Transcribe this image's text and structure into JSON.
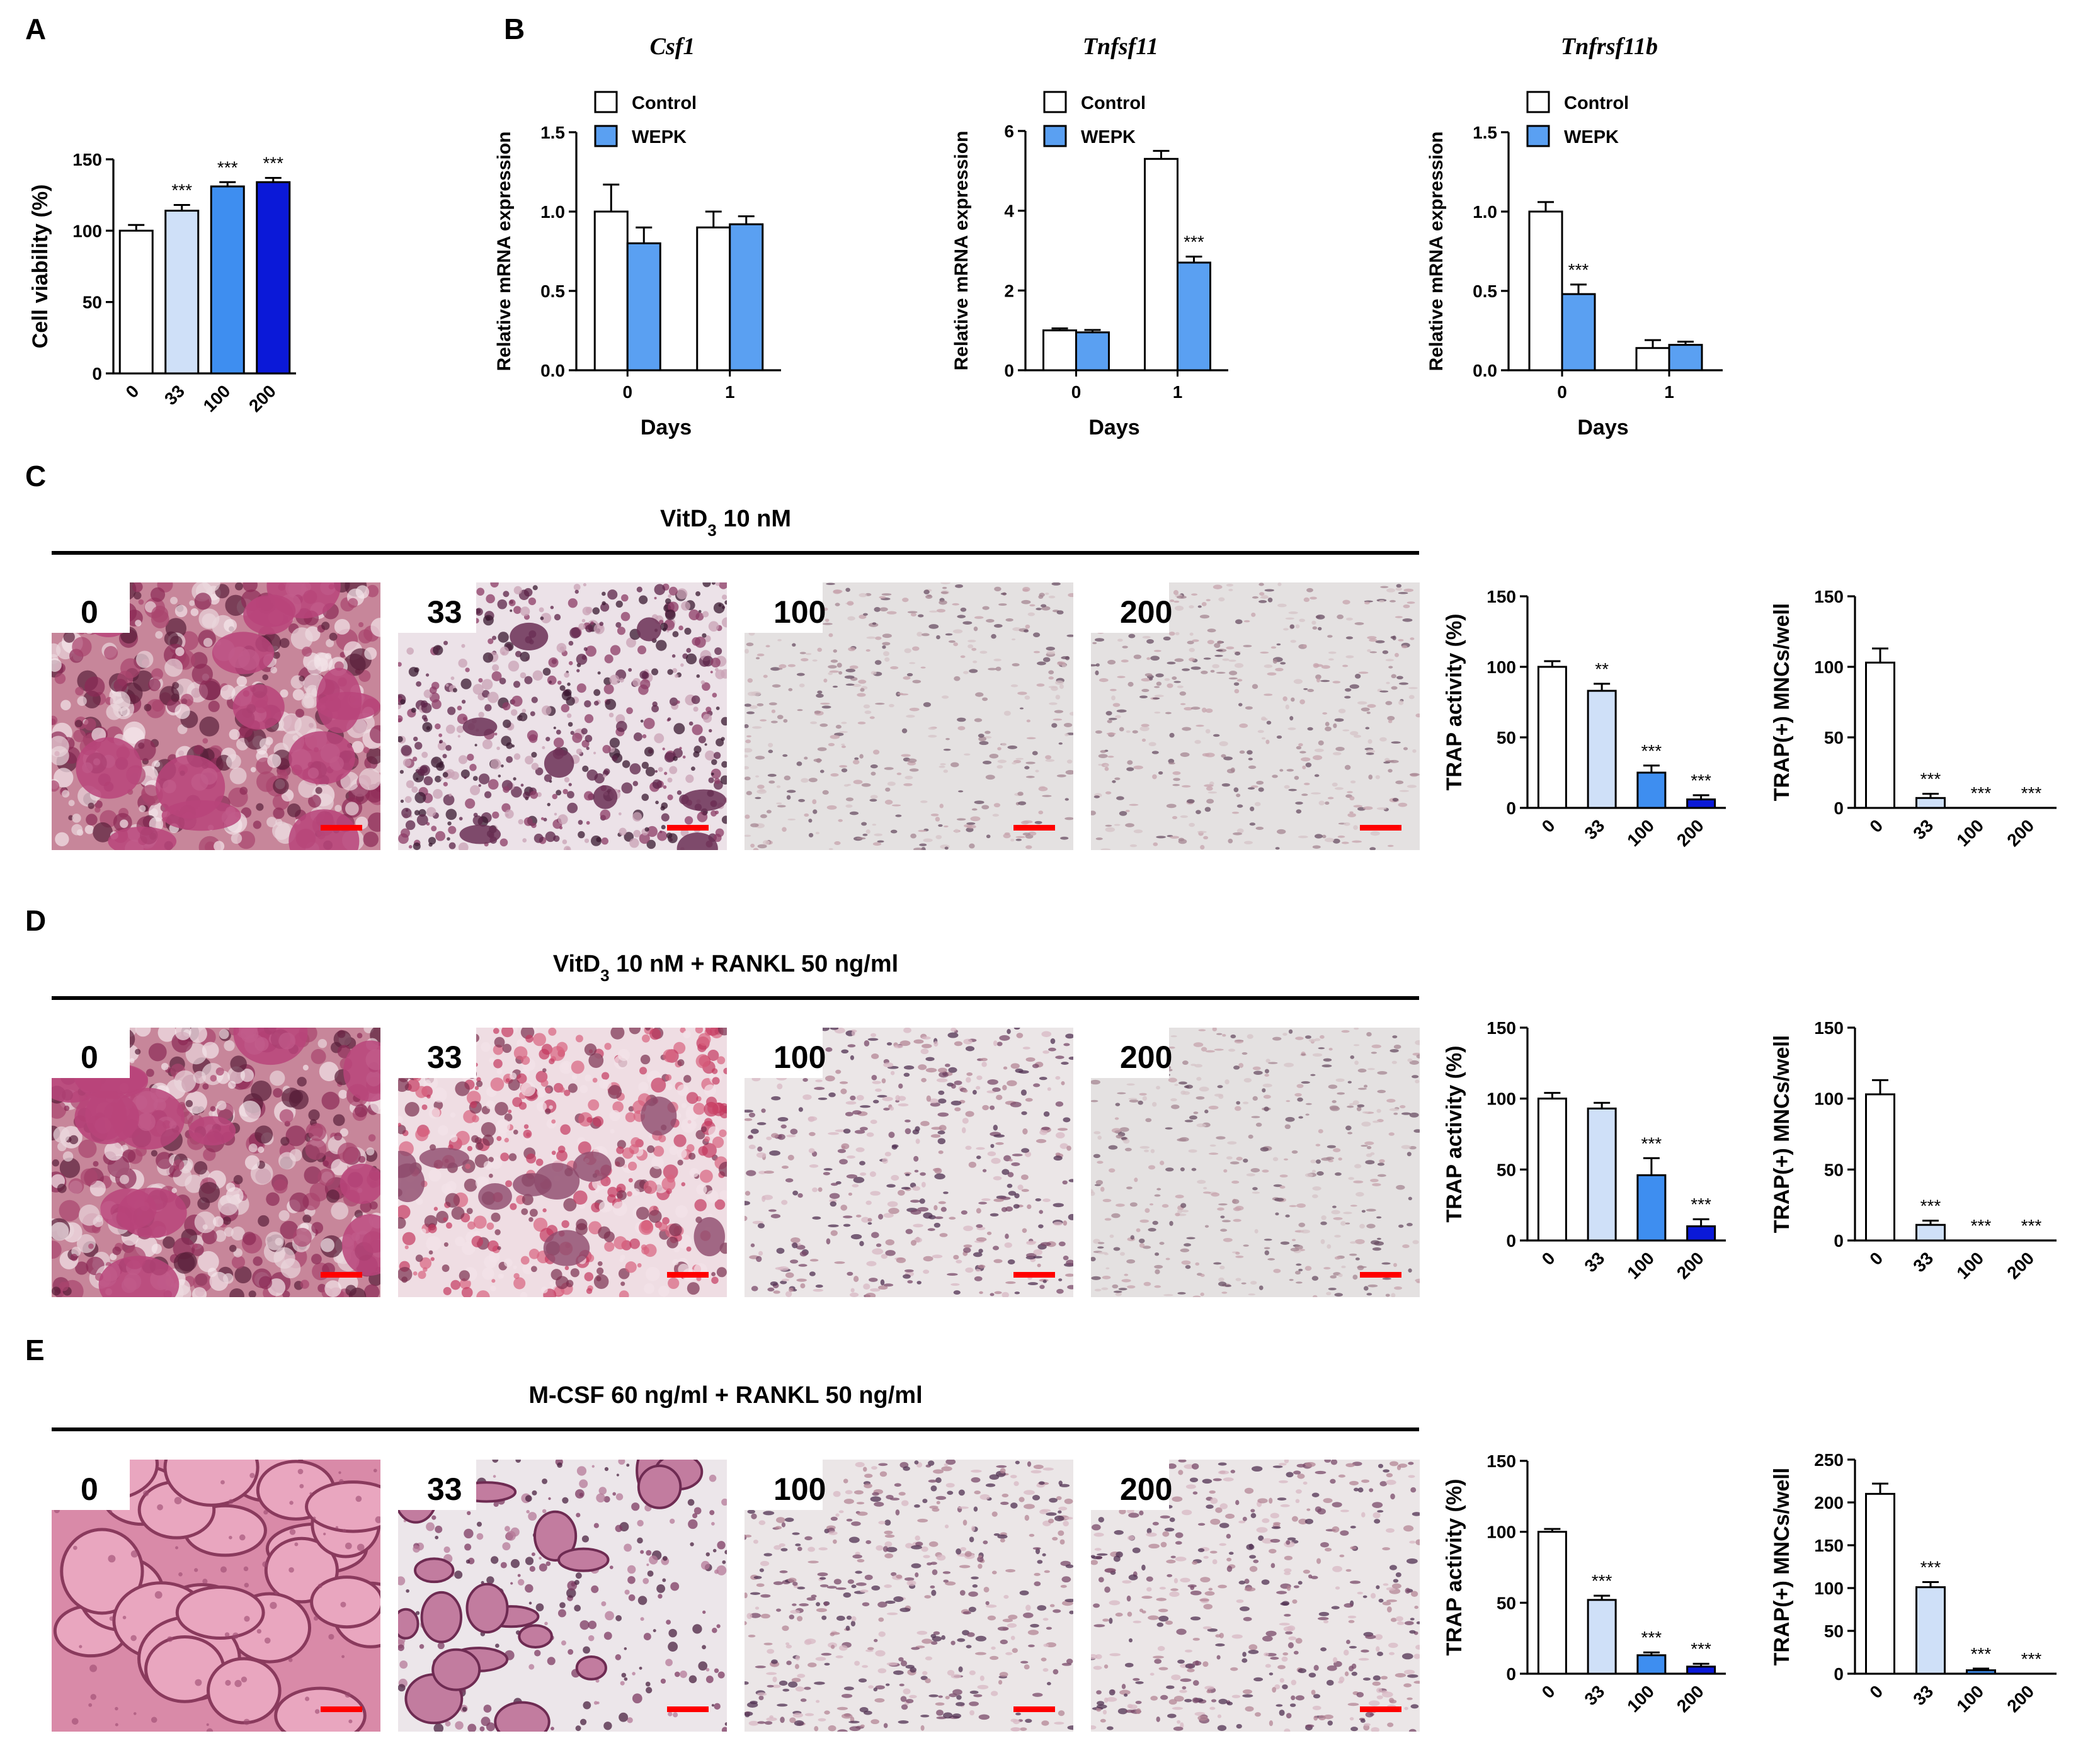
{
  "panel_labels": [
    "A",
    "B",
    "C",
    "D",
    "E"
  ],
  "chart_data": [
    {
      "id": "A",
      "type": "bar",
      "categories": [
        "0",
        "33",
        "100",
        "200"
      ],
      "values": [
        100,
        114,
        131,
        134
      ],
      "errors": [
        4,
        4,
        3,
        3
      ],
      "significance": [
        "",
        "***",
        "***",
        "***"
      ],
      "colors": [
        "#ffffff",
        "#cfe0f8",
        "#3e8ef0",
        "#0b19d8"
      ],
      "ylabel": "Cell viability (%)",
      "ylim": [
        0,
        150
      ],
      "yticks": [
        0,
        50,
        100,
        150
      ]
    },
    {
      "id": "B1",
      "type": "bar",
      "title": "Csf1",
      "categories": [
        "0",
        "1"
      ],
      "xlabel": "Days",
      "ylabel": "Relative mRNA expression",
      "ylim": [
        0,
        1.5
      ],
      "yticks": [
        "0.0",
        "0.5",
        "1.0",
        "1.5"
      ],
      "legend": [
        "Control",
        "WEPK"
      ],
      "series": [
        {
          "name": "Control",
          "values": [
            1.0,
            0.9
          ],
          "errors": [
            0.17,
            0.1
          ],
          "significance": [
            "",
            ""
          ],
          "color": "#ffffff"
        },
        {
          "name": "WEPK",
          "values": [
            0.8,
            0.92
          ],
          "errors": [
            0.1,
            0.05
          ],
          "significance": [
            "",
            ""
          ],
          "color": "#5aa0f2"
        }
      ]
    },
    {
      "id": "B2",
      "type": "bar",
      "title": "Tnfsf11",
      "categories": [
        "0",
        "1"
      ],
      "xlabel": "Days",
      "ylabel": "Relative mRNA expression",
      "ylim": [
        0,
        6
      ],
      "yticks": [
        "0",
        "2",
        "4",
        "6"
      ],
      "legend": [
        "Control",
        "WEPK"
      ],
      "series": [
        {
          "name": "Control",
          "values": [
            1.0,
            5.3
          ],
          "errors": [
            0.05,
            0.2
          ],
          "significance": [
            "",
            ""
          ],
          "color": "#ffffff"
        },
        {
          "name": "WEPK",
          "values": [
            0.95,
            2.7
          ],
          "errors": [
            0.06,
            0.15
          ],
          "significance": [
            "",
            "***"
          ],
          "color": "#5aa0f2"
        }
      ]
    },
    {
      "id": "B3",
      "type": "bar",
      "title": "Tnfrsf11b",
      "categories": [
        "0",
        "1"
      ],
      "xlabel": "Days",
      "ylabel": "Relative mRNA expression",
      "ylim": [
        0,
        1.5
      ],
      "yticks": [
        "0.0",
        "0.5",
        "1.0",
        "1.5"
      ],
      "legend": [
        "Control",
        "WEPK"
      ],
      "series": [
        {
          "name": "Control",
          "values": [
            1.0,
            0.14
          ],
          "errors": [
            0.06,
            0.05
          ],
          "significance": [
            "",
            ""
          ],
          "color": "#ffffff"
        },
        {
          "name": "WEPK",
          "values": [
            0.48,
            0.16
          ],
          "errors": [
            0.06,
            0.02
          ],
          "significance": [
            "***",
            ""
          ],
          "color": "#5aa0f2"
        }
      ]
    },
    {
      "id": "C1",
      "type": "bar",
      "categories": [
        "0",
        "33",
        "100",
        "200"
      ],
      "values": [
        100,
        83,
        25,
        6
      ],
      "errors": [
        4,
        5,
        5,
        3
      ],
      "significance": [
        "",
        "**",
        "***",
        "***"
      ],
      "colors": [
        "#ffffff",
        "#cfe0f8",
        "#3e8ef0",
        "#0b19d8"
      ],
      "ylabel": "TRAP activity (%)",
      "ylim": [
        0,
        150
      ],
      "yticks": [
        0,
        50,
        100,
        150
      ]
    },
    {
      "id": "C2",
      "type": "bar",
      "categories": [
        "0",
        "33",
        "100",
        "200"
      ],
      "values": [
        103,
        7,
        0,
        0
      ],
      "errors": [
        10,
        3,
        0,
        0
      ],
      "significance": [
        "",
        "***",
        "***",
        "***"
      ],
      "colors": [
        "#ffffff",
        "#cfe0f8",
        "#3e8ef0",
        "#0b19d8"
      ],
      "ylabel": "TRAP(+) MNCs/well",
      "ylim": [
        0,
        150
      ],
      "yticks": [
        0,
        50,
        100,
        150
      ]
    },
    {
      "id": "D1",
      "type": "bar",
      "categories": [
        "0",
        "33",
        "100",
        "200"
      ],
      "values": [
        100,
        93,
        46,
        10
      ],
      "errors": [
        4,
        4,
        12,
        5
      ],
      "significance": [
        "",
        "",
        "***",
        "***"
      ],
      "colors": [
        "#ffffff",
        "#cfe0f8",
        "#3e8ef0",
        "#0b19d8"
      ],
      "ylabel": "TRAP activity (%)",
      "ylim": [
        0,
        150
      ],
      "yticks": [
        0,
        50,
        100,
        150
      ]
    },
    {
      "id": "D2",
      "type": "bar",
      "categories": [
        "0",
        "33",
        "100",
        "200"
      ],
      "values": [
        103,
        11,
        0,
        0
      ],
      "errors": [
        10,
        3,
        0,
        0
      ],
      "significance": [
        "",
        "***",
        "***",
        "***"
      ],
      "colors": [
        "#ffffff",
        "#cfe0f8",
        "#3e8ef0",
        "#0b19d8"
      ],
      "ylabel": "TRAP(+) MNCs/well",
      "ylim": [
        0,
        150
      ],
      "yticks": [
        0,
        50,
        100,
        150
      ]
    },
    {
      "id": "E1",
      "type": "bar",
      "categories": [
        "0",
        "33",
        "100",
        "200"
      ],
      "values": [
        100,
        52,
        13,
        5
      ],
      "errors": [
        2,
        3,
        2,
        2
      ],
      "significance": [
        "",
        "***",
        "***",
        "***"
      ],
      "colors": [
        "#ffffff",
        "#cfe0f8",
        "#3e8ef0",
        "#0b19d8"
      ],
      "ylabel": "TRAP activity (%)",
      "ylim": [
        0,
        150
      ],
      "yticks": [
        0,
        50,
        100,
        150
      ]
    },
    {
      "id": "E2",
      "type": "bar",
      "categories": [
        "0",
        "33",
        "100",
        "200"
      ],
      "values": [
        210,
        101,
        4,
        0
      ],
      "errors": [
        12,
        6,
        2,
        0
      ],
      "significance": [
        "",
        "***",
        "***",
        "***"
      ],
      "colors": [
        "#ffffff",
        "#cfe0f8",
        "#3e8ef0",
        "#0b19d8"
      ],
      "ylabel": "TRAP(+) MNCs/well",
      "ylim": [
        0,
        250
      ],
      "yticks": [
        0,
        50,
        100,
        150,
        200,
        250
      ]
    }
  ],
  "micrograph_rows": [
    {
      "id": "C",
      "header_main": "VitD",
      "header_sub": "3",
      "header_rest": " 10 nM",
      "images": [
        {
          "label": "0",
          "style": "dense-pink-clusters"
        },
        {
          "label": "33",
          "style": "dark-purple-cells"
        },
        {
          "label": "100",
          "style": "sparse-grey"
        },
        {
          "label": "200",
          "style": "sparse-grey"
        }
      ]
    },
    {
      "id": "D",
      "header_main": "VitD",
      "header_sub": "3",
      "header_rest": " 10 nM + RANKL 50 ng/ml",
      "images": [
        {
          "label": "0",
          "style": "dense-pink-clusters"
        },
        {
          "label": "33",
          "style": "pink-network"
        },
        {
          "label": "100",
          "style": "scattered-cells"
        },
        {
          "label": "200",
          "style": "sparse-grey"
        }
      ]
    },
    {
      "id": "E",
      "header_main": "M-CSF 60 ng/ml + RANKL 50 ng/ml",
      "header_sub": "",
      "header_rest": "",
      "images": [
        {
          "label": "0",
          "style": "large-pink-cells"
        },
        {
          "label": "33",
          "style": "purple-clusters"
        },
        {
          "label": "100",
          "style": "scattered-cells"
        },
        {
          "label": "200",
          "style": "scattered-cells"
        }
      ]
    }
  ],
  "colors": {
    "axis": "#000000",
    "scale_bar": "#ff0000"
  }
}
